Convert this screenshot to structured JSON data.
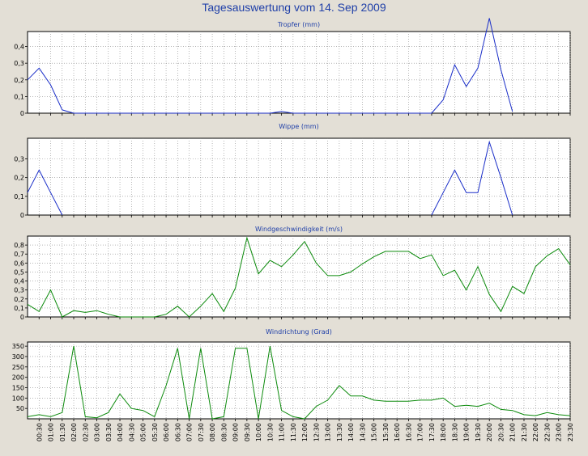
{
  "window": {
    "title": "Tagesauswertung vom 14. Sep 2009"
  },
  "colors": {
    "background": "#e3dfd6",
    "plot_bg": "#ffffff",
    "grid": "#8a8a8a",
    "title": "#1f3fa8",
    "blue_series": "#1a2ec8",
    "green_series": "#0b8a0b"
  },
  "x_tick_labels": [
    "00:30",
    "01:00",
    "01:30",
    "02:00",
    "02:30",
    "03:00",
    "03:30",
    "04:00",
    "04:30",
    "05:00",
    "05:30",
    "06:00",
    "06:30",
    "07:00",
    "07:30",
    "08:00",
    "08:30",
    "09:00",
    "09:30",
    "10:00",
    "10:30",
    "11:00",
    "11:30",
    "12:00",
    "12:30",
    "13:00",
    "13:30",
    "14:00",
    "14:30",
    "15:00",
    "15:30",
    "16:00",
    "16:30",
    "17:00",
    "17:30",
    "18:00",
    "18:30",
    "19:00",
    "19:30",
    "20:00",
    "20:30",
    "21:00",
    "21:30",
    "22:00",
    "22:30",
    "23:00",
    "23:30"
  ],
  "chart_data": [
    {
      "type": "line",
      "title": "Tropfer (mm)",
      "x": [
        "00:00",
        "00:30",
        "01:00",
        "01:30",
        "02:00",
        "02:30",
        "03:00",
        "03:30",
        "04:00",
        "04:30",
        "05:00",
        "05:30",
        "06:00",
        "06:30",
        "07:00",
        "07:30",
        "08:00",
        "08:30",
        "09:00",
        "09:30",
        "10:00",
        "10:30",
        "11:00",
        "11:30",
        "12:00",
        "12:30",
        "13:00",
        "13:30",
        "14:00",
        "14:30",
        "15:00",
        "15:30",
        "16:00",
        "16:30",
        "17:00",
        "17:30",
        "18:00",
        "18:30",
        "19:00",
        "19:30",
        "20:00",
        "20:30",
        "21:00",
        "21:30",
        "22:00",
        "22:30",
        "23:00",
        "23:30"
      ],
      "y": [
        0.2,
        0.27,
        0.17,
        0.02,
        0,
        0,
        0,
        0,
        0,
        0,
        0,
        0,
        0,
        0,
        0,
        0,
        0,
        0,
        0,
        0,
        0,
        0,
        0.01,
        0,
        0,
        0,
        0,
        0,
        0,
        0,
        0,
        0,
        0,
        0,
        0,
        0,
        0.08,
        0.29,
        0.16,
        0.27,
        0.57,
        0.26,
        0.01,
        null,
        null,
        null,
        null,
        null
      ],
      "ylim": [
        0,
        0.49
      ],
      "yticks": [
        "0",
        "0,1",
        "0,2",
        "0,3",
        "0,4"
      ],
      "ytick_values": [
        0,
        0.1,
        0.2,
        0.3,
        0.4
      ],
      "series_color": "blue"
    },
    {
      "type": "line",
      "title": "Wippe (mm)",
      "x": [
        "00:00",
        "00:30",
        "01:00",
        "01:30",
        "02:00",
        "02:30",
        "03:00",
        "03:30",
        "04:00",
        "04:30",
        "05:00",
        "05:30",
        "06:00",
        "06:30",
        "07:00",
        "07:30",
        "08:00",
        "08:30",
        "09:00",
        "09:30",
        "10:00",
        "10:30",
        "11:00",
        "11:30",
        "12:00",
        "12:30",
        "13:00",
        "13:30",
        "14:00",
        "14:30",
        "15:00",
        "15:30",
        "16:00",
        "16:30",
        "17:00",
        "17:30",
        "18:00",
        "18:30",
        "19:00",
        "19:30",
        "20:00",
        "20:30",
        "21:00",
        "21:30",
        "22:00",
        "22:30",
        "23:00",
        "23:30"
      ],
      "y": [
        0.12,
        0.24,
        0.12,
        0,
        null,
        null,
        null,
        null,
        null,
        null,
        null,
        null,
        null,
        null,
        null,
        null,
        null,
        null,
        null,
        null,
        null,
        null,
        null,
        null,
        null,
        null,
        null,
        null,
        null,
        null,
        null,
        null,
        null,
        null,
        null,
        0,
        0.12,
        0.24,
        0.12,
        0.12,
        0.39,
        0.2,
        0,
        null,
        null,
        null,
        null,
        null
      ],
      "ylim": [
        0,
        0.41
      ],
      "yticks": [
        "0",
        "0,1",
        "0,2",
        "0,3"
      ],
      "ytick_values": [
        0,
        0.1,
        0.2,
        0.3
      ],
      "series_color": "blue"
    },
    {
      "type": "line",
      "title": "Windgeschwindigkeit (m/s)",
      "x": [
        "00:00",
        "00:30",
        "01:00",
        "01:30",
        "02:00",
        "02:30",
        "03:00",
        "03:30",
        "04:00",
        "04:30",
        "05:00",
        "05:30",
        "06:00",
        "06:30",
        "07:00",
        "07:30",
        "08:00",
        "08:30",
        "09:00",
        "09:30",
        "10:00",
        "10:30",
        "11:00",
        "11:30",
        "12:00",
        "12:30",
        "13:00",
        "13:30",
        "14:00",
        "14:30",
        "15:00",
        "15:30",
        "16:00",
        "16:30",
        "17:00",
        "17:30",
        "18:00",
        "18:30",
        "19:00",
        "19:30",
        "20:00",
        "20:30",
        "21:00",
        "21:30",
        "22:00",
        "22:30",
        "23:00",
        "23:30"
      ],
      "y": [
        0.14,
        0.06,
        0.3,
        0,
        0.07,
        0.05,
        0.07,
        0.03,
        0,
        0,
        0,
        0,
        0.03,
        0.12,
        0,
        0.12,
        0.26,
        0.06,
        0.32,
        0.88,
        0.48,
        0.63,
        0.56,
        0.69,
        0.84,
        0.6,
        0.46,
        0.46,
        0.5,
        0.59,
        0.67,
        0.73,
        0.73,
        0.73,
        0.65,
        0.69,
        0.46,
        0.52,
        0.3,
        0.56,
        0.25,
        0.06,
        0.34,
        0.26,
        0.56,
        0.68,
        0.76,
        0.58
      ],
      "ylim": [
        0,
        0.9
      ],
      "yticks": [
        "0",
        "0,1",
        "0,2",
        "0,3",
        "0,4",
        "0,5",
        "0,6",
        "0,7",
        "0,8"
      ],
      "ytick_values": [
        0,
        0.1,
        0.2,
        0.3,
        0.4,
        0.5,
        0.6,
        0.7,
        0.8
      ],
      "series_color": "green"
    },
    {
      "type": "line",
      "title": "Windrichtung (Grad)",
      "x": [
        "00:00",
        "00:30",
        "01:00",
        "01:30",
        "02:00",
        "02:30",
        "03:00",
        "03:30",
        "04:00",
        "04:30",
        "05:00",
        "05:30",
        "06:00",
        "06:30",
        "07:00",
        "07:30",
        "08:00",
        "08:30",
        "09:00",
        "09:30",
        "10:00",
        "10:30",
        "11:00",
        "11:30",
        "12:00",
        "12:30",
        "13:00",
        "13:30",
        "14:00",
        "14:30",
        "15:00",
        "15:30",
        "16:00",
        "16:30",
        "17:00",
        "17:30",
        "18:00",
        "18:30",
        "19:00",
        "19:30",
        "20:00",
        "20:30",
        "21:00",
        "21:30",
        "22:00",
        "22:30",
        "23:00",
        "23:30"
      ],
      "y": [
        10,
        20,
        10,
        30,
        350,
        10,
        5,
        30,
        120,
        50,
        40,
        10,
        160,
        340,
        0,
        340,
        0,
        10,
        340,
        340,
        0,
        350,
        40,
        10,
        0,
        60,
        90,
        160,
        110,
        110,
        90,
        85,
        85,
        85,
        90,
        90,
        100,
        60,
        65,
        60,
        75,
        45,
        40,
        20,
        15,
        30,
        20,
        15
      ],
      "ylim": [
        0,
        370
      ],
      "yticks": [
        "50",
        "100",
        "150",
        "200",
        "250",
        "300",
        "350"
      ],
      "ytick_values": [
        50,
        100,
        150,
        200,
        250,
        300,
        350
      ],
      "series_color": "green"
    }
  ]
}
